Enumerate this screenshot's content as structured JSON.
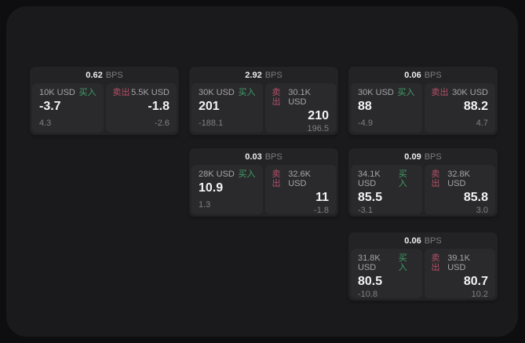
{
  "labels": {
    "bps_unit": "BPS",
    "buy": "买入",
    "sell": "卖出"
  },
  "colors": {
    "buy": "#3f9f68",
    "sell": "#b54f68",
    "panel_bg": "#1a1a1c",
    "card_bg": "#232325",
    "subpanel_bg": "#2a2a2c"
  },
  "cards": [
    {
      "col": 0,
      "row": 0,
      "bps": "0.62",
      "buy": {
        "notional": "10K USD",
        "value": "-3.7",
        "delta": "4.3"
      },
      "sell": {
        "notional": "5.5K USD",
        "value": "-1.8",
        "delta": "-2.6"
      }
    },
    {
      "col": 1,
      "row": 0,
      "bps": "2.92",
      "buy": {
        "notional": "30K USD",
        "value": "201",
        "delta": "-188.1"
      },
      "sell": {
        "notional": "30.1K USD",
        "value": "210",
        "delta": "196.5"
      }
    },
    {
      "col": 2,
      "row": 0,
      "bps": "0.06",
      "buy": {
        "notional": "30K USD",
        "value": "88",
        "delta": "-4.9"
      },
      "sell": {
        "notional": "30K USD",
        "value": "88.2",
        "delta": "4.7"
      }
    },
    {
      "col": 1,
      "row": 1,
      "bps": "0.03",
      "buy": {
        "notional": "28K USD",
        "value": "10.9",
        "delta": "1.3"
      },
      "sell": {
        "notional": "32.6K USD",
        "value": "11",
        "delta": "-1.8"
      }
    },
    {
      "col": 2,
      "row": 1,
      "bps": "0.09",
      "buy": {
        "notional": "34.1K USD",
        "value": "85.5",
        "delta": "-3.1"
      },
      "sell": {
        "notional": "32.8K USD",
        "value": "85.8",
        "delta": "3.0"
      }
    },
    {
      "col": 2,
      "row": 2,
      "bps": "0.06",
      "buy": {
        "notional": "31.8K USD",
        "value": "80.5",
        "delta": "-10.8"
      },
      "sell": {
        "notional": "39.1K USD",
        "value": "80.7",
        "delta": "10.2"
      }
    }
  ]
}
